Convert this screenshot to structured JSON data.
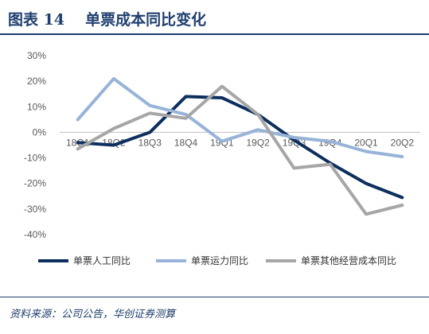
{
  "header": {
    "figure_label": "图表 14",
    "title": "单票成本同比变化"
  },
  "source": "资料来源：公司公告，华创证券测算",
  "chart_data": {
    "type": "line",
    "title": "单票成本同比变化",
    "xlabel": "",
    "ylabel": "",
    "categories": [
      "18Q1",
      "18Q2",
      "18Q3",
      "18Q4",
      "19Q1",
      "19Q2",
      "19Q3",
      "19Q4",
      "20Q1",
      "20Q2"
    ],
    "y_ticks": [
      "30%",
      "20%",
      "10%",
      "0%",
      "-10%",
      "-20%",
      "-30%",
      "-40%"
    ],
    "ylim": [
      -0.4,
      0.3
    ],
    "grid": false,
    "legend_position": "bottom",
    "series": [
      {
        "name": "单票人工同比",
        "color": "#0d2f5e",
        "values": [
          -0.04,
          -0.05,
          0.0,
          0.14,
          0.135,
          0.07,
          -0.03,
          -0.12,
          -0.2,
          -0.255
        ]
      },
      {
        "name": "单票运力同比",
        "color": "#97b3d8",
        "values": [
          0.05,
          0.21,
          0.105,
          0.07,
          -0.035,
          0.01,
          -0.02,
          -0.035,
          -0.075,
          -0.095
        ]
      },
      {
        "name": "单票其他经营成本同比",
        "color": "#a6a6a6",
        "values": [
          -0.065,
          0.015,
          0.075,
          0.055,
          0.18,
          0.07,
          -0.14,
          -0.125,
          -0.32,
          -0.285
        ]
      }
    ]
  }
}
